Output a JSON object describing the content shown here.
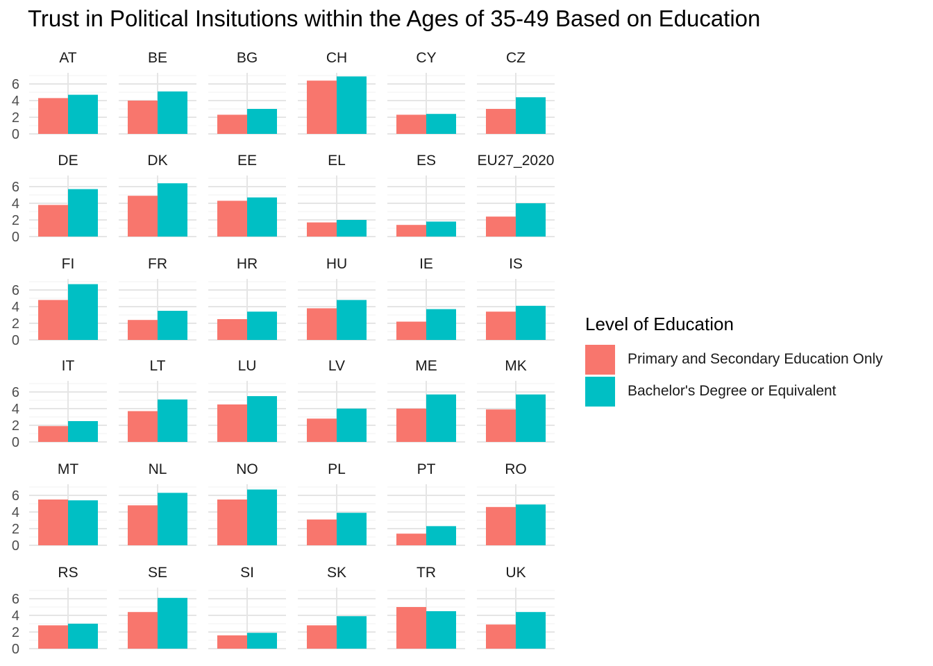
{
  "chart_data": {
    "type": "bar",
    "title": "Trust in Political Insitutions within the Ages of 35-49 Based on Education",
    "xlabel": "",
    "ylabel": "",
    "ylim": [
      0,
      7
    ],
    "yticks": [
      0,
      2,
      4,
      6
    ],
    "grid": true,
    "facet_layout": "6 columns x 6 rows",
    "legend": {
      "title": "Level of Education",
      "position": "right",
      "entries": [
        {
          "label": "Primary and Secondary Education Only",
          "color": "#F8766D"
        },
        {
          "label": "Bachelor's Degree or Equivalent",
          "color": "#00BFC4"
        }
      ]
    },
    "series_names": [
      "Primary and Secondary Education Only",
      "Bachelor's Degree or Equivalent"
    ],
    "facets": [
      {
        "name": "AT",
        "values": [
          4.3,
          4.7
        ]
      },
      {
        "name": "BE",
        "values": [
          4.0,
          5.1
        ]
      },
      {
        "name": "BG",
        "values": [
          2.3,
          3.0
        ]
      },
      {
        "name": "CH",
        "values": [
          6.4,
          6.9
        ]
      },
      {
        "name": "CY",
        "values": [
          2.3,
          2.4
        ]
      },
      {
        "name": "CZ",
        "values": [
          3.0,
          4.4
        ]
      },
      {
        "name": "DE",
        "values": [
          3.8,
          5.7
        ]
      },
      {
        "name": "DK",
        "values": [
          4.9,
          6.4
        ]
      },
      {
        "name": "EE",
        "values": [
          4.3,
          4.7
        ]
      },
      {
        "name": "EL",
        "values": [
          1.7,
          2.0
        ]
      },
      {
        "name": "ES",
        "values": [
          1.4,
          1.8
        ]
      },
      {
        "name": "EU27_2020",
        "values": [
          2.4,
          4.0
        ]
      },
      {
        "name": "FI",
        "values": [
          4.8,
          6.7
        ]
      },
      {
        "name": "FR",
        "values": [
          2.4,
          3.5
        ]
      },
      {
        "name": "HR",
        "values": [
          2.5,
          3.4
        ]
      },
      {
        "name": "HU",
        "values": [
          3.8,
          4.8
        ]
      },
      {
        "name": "IE",
        "values": [
          2.2,
          3.7
        ]
      },
      {
        "name": "IS",
        "values": [
          3.4,
          4.1
        ]
      },
      {
        "name": "IT",
        "values": [
          1.9,
          2.5
        ]
      },
      {
        "name": "LT",
        "values": [
          3.7,
          5.1
        ]
      },
      {
        "name": "LU",
        "values": [
          4.5,
          5.5
        ]
      },
      {
        "name": "LV",
        "values": [
          2.8,
          4.0
        ]
      },
      {
        "name": "ME",
        "values": [
          4.0,
          5.7
        ]
      },
      {
        "name": "MK",
        "values": [
          3.9,
          5.7
        ]
      },
      {
        "name": "MT",
        "values": [
          5.5,
          5.4
        ]
      },
      {
        "name": "NL",
        "values": [
          4.8,
          6.3
        ]
      },
      {
        "name": "NO",
        "values": [
          5.5,
          6.7
        ]
      },
      {
        "name": "PL",
        "values": [
          3.1,
          3.9
        ]
      },
      {
        "name": "PT",
        "values": [
          1.4,
          2.3
        ]
      },
      {
        "name": "RO",
        "values": [
          4.6,
          4.9
        ]
      },
      {
        "name": "RS",
        "values": [
          2.8,
          3.0
        ]
      },
      {
        "name": "SE",
        "values": [
          4.4,
          6.1
        ]
      },
      {
        "name": "SI",
        "values": [
          1.6,
          1.9
        ]
      },
      {
        "name": "SK",
        "values": [
          2.8,
          3.9
        ]
      },
      {
        "name": "TR",
        "values": [
          5.0,
          4.5
        ]
      },
      {
        "name": "UK",
        "values": [
          2.9,
          4.4
        ]
      }
    ]
  }
}
